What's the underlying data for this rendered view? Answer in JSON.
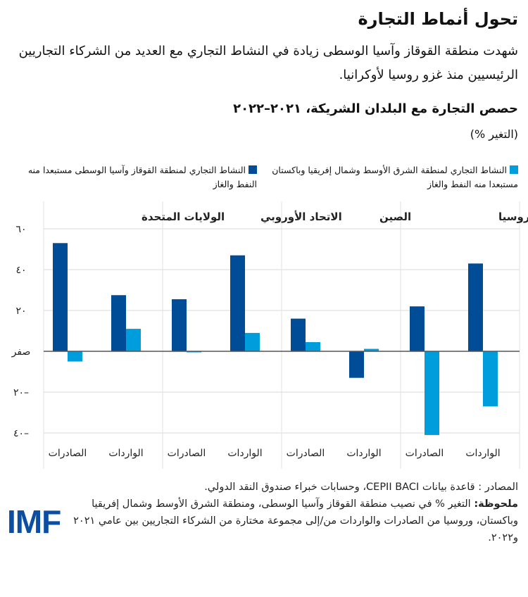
{
  "title": "تحول أنماط التجارة",
  "subtitle": "شهدت منطقة القوقاز وآسيا الوسطى زيادة في النشاط التجاري مع العديد من الشركاء التجاريين الرئيسيين منذ غزو روسيا لأوكرانيا.",
  "chart_data": {
    "type": "bar",
    "title": "حصص التجارة مع البلدان الشريكة، ٢٠٢١–٢٠٢٢",
    "ylabel": "(التغير %)",
    "ylim": [
      -40,
      60
    ],
    "yticks": [
      60,
      40,
      20,
      0,
      -20,
      -40
    ],
    "ytick_labels": [
      "٦٠",
      "٤٠",
      "٢٠",
      "صفر",
      "٢٠–",
      "٤٠–"
    ],
    "grid": true,
    "legend_position": "top",
    "groups": [
      "الولايات المتحدة",
      "الاتحاد الأوروبي",
      "الصين",
      "روسيا"
    ],
    "subcategories": [
      "الصادرات",
      "الواردات"
    ],
    "series": [
      {
        "name": "النشاط التجاري لمنطقة القوقاز وآسيا الوسطى مستبعدا منه النفط والغاز",
        "color": "#004c97",
        "values": [
          [
            53,
            27.5
          ],
          [
            25.5,
            47
          ],
          [
            16,
            -13
          ],
          [
            22,
            43
          ]
        ]
      },
      {
        "name": "النشاط التجاري لمنطقة الشرق الأوسط وشمال إفريقيا وباكستان مستبعدا منه النفط والغاز",
        "color": "#009ddc",
        "values": [
          [
            -5,
            11
          ],
          [
            -0.5,
            9
          ],
          [
            4.5,
            1.2
          ],
          [
            -41,
            -27
          ]
        ]
      }
    ]
  },
  "source": "المصادر : قاعدة بيانات CEPII BACI، وحسابات خبراء صندوق النقد الدولي.",
  "note_label": "ملحوظة:",
  "note": " التغير % في نصيب منطقة القوقاز وآسيا الوسطى، ومنطقة الشرق الأوسط وشمال إفريقيا وباكستان، وروسيا من الصادرات والواردات من/إلى مجموعة مختارة من الشركاء التجاريين بين عامي ٢٠٢١ و٢٠٢٢.",
  "logo": "IMF"
}
